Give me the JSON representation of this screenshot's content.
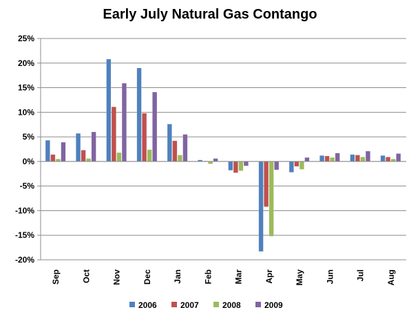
{
  "chart_data": {
    "type": "bar",
    "title": "Early July Natural Gas Contango",
    "xlabel": "",
    "ylabel": "",
    "categories": [
      "Sep",
      "Oct",
      "Nov",
      "Dec",
      "Jan",
      "Feb",
      "Mar",
      "Apr",
      "May",
      "Jun",
      "Jul",
      "Aug"
    ],
    "ylim": [
      -20,
      25
    ],
    "yticks": [
      25,
      20,
      15,
      10,
      5,
      0,
      -5,
      -10,
      -15,
      -20
    ],
    "ytick_labels": [
      "25%",
      "20%",
      "15%",
      "10%",
      "5%",
      "0%",
      "-5%",
      "-10%",
      "-15%",
      "-20%"
    ],
    "grid": true,
    "legend": "bottom",
    "series": [
      {
        "name": "2006",
        "color": "#4F81BD",
        "values": [
          4.3,
          5.7,
          20.8,
          19.0,
          7.6,
          0.3,
          -1.8,
          -18.3,
          -2.2,
          1.2,
          1.4,
          1.2
        ]
      },
      {
        "name": "2007",
        "color": "#C0504D",
        "values": [
          1.4,
          2.3,
          11.1,
          9.8,
          4.2,
          0.1,
          -2.3,
          -9.2,
          -1.0,
          1.1,
          1.3,
          0.9
        ]
      },
      {
        "name": "2008",
        "color": "#9BBB59",
        "values": [
          0.5,
          0.6,
          1.8,
          2.4,
          1.3,
          -0.5,
          -1.9,
          -15.2,
          -1.6,
          0.8,
          0.9,
          0.5
        ]
      },
      {
        "name": "2009",
        "color": "#8064A2",
        "values": [
          3.9,
          6.0,
          15.9,
          14.1,
          5.5,
          0.6,
          -0.9,
          -1.7,
          0.8,
          1.7,
          2.1,
          1.6
        ]
      }
    ]
  }
}
